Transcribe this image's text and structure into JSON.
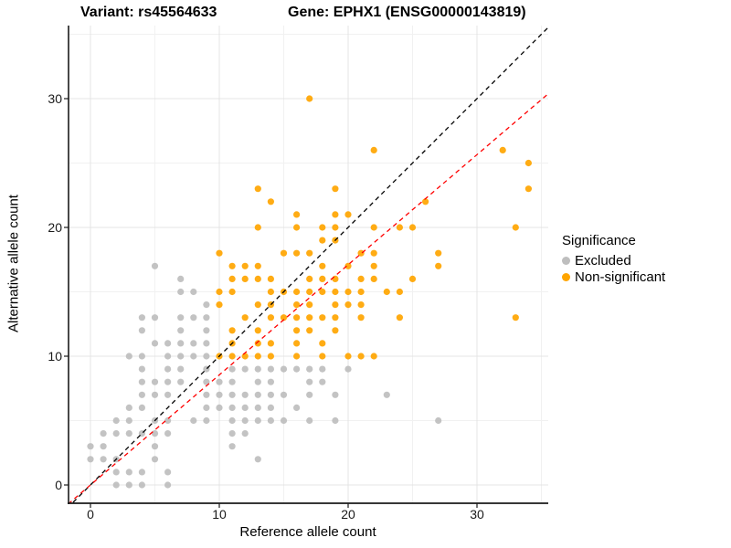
{
  "chart_data": {
    "type": "scatter",
    "titles": {
      "left": "Variant: rs45564633",
      "right": "Gene: EPHX1 (ENSG00000143819)"
    },
    "xlabel": "Reference allele count",
    "ylabel": "Alternative allele count",
    "x_ticks": [
      "0",
      "10",
      "20",
      "30"
    ],
    "y_ticks": [
      "0",
      "10",
      "20",
      "30"
    ],
    "x_tick_values": [
      0,
      10,
      20,
      30
    ],
    "y_tick_values": [
      0,
      10,
      20,
      30
    ],
    "x_minor_values": [
      5,
      15,
      25,
      35
    ],
    "y_minor_values": [
      5,
      15,
      25,
      35
    ],
    "xlim": [
      -1.7,
      35.5
    ],
    "ylim": [
      -1.42,
      35.67
    ],
    "grid": true,
    "colors": {
      "excluded": "#BEBEBE",
      "non_significant": "#FFA500",
      "identity_line": "#000000",
      "fit_line": "#FF0000",
      "grid_major": "#e4e4e4",
      "grid_minor": "#f1f1f1",
      "axis": "#1a1a1a"
    },
    "legend": {
      "title": "Significance",
      "position": "right",
      "items": [
        {
          "label": "Excluded",
          "color": "#BEBEBE"
        },
        {
          "label": "Non-significant",
          "color": "#FFA500"
        }
      ]
    },
    "lines": [
      {
        "name": "identity-line",
        "slope": 1,
        "intercept": 0,
        "color": "#000000",
        "style": "dashed"
      },
      {
        "name": "fit-line",
        "slope": 0.855,
        "intercept": 0,
        "color": "#FF0000",
        "style": "dashed"
      }
    ],
    "series": [
      {
        "name": "Excluded",
        "color": "#BEBEBE",
        "points": [
          [
            2,
            0
          ],
          [
            3,
            0
          ],
          [
            4,
            0
          ],
          [
            6,
            0
          ],
          [
            2,
            1
          ],
          [
            3,
            1
          ],
          [
            4,
            1
          ],
          [
            6,
            1
          ],
          [
            0,
            2
          ],
          [
            1,
            2
          ],
          [
            2,
            2
          ],
          [
            5,
            2
          ],
          [
            13,
            2
          ],
          [
            0,
            3
          ],
          [
            1,
            3
          ],
          [
            5,
            3
          ],
          [
            11,
            3
          ],
          [
            1,
            4
          ],
          [
            2,
            4
          ],
          [
            3,
            4
          ],
          [
            4,
            4
          ],
          [
            5,
            4
          ],
          [
            6,
            4
          ],
          [
            11,
            4
          ],
          [
            12,
            4
          ],
          [
            2,
            5
          ],
          [
            3,
            5
          ],
          [
            5,
            5
          ],
          [
            6,
            5
          ],
          [
            8,
            5
          ],
          [
            9,
            5
          ],
          [
            11,
            5
          ],
          [
            12,
            5
          ],
          [
            13,
            5
          ],
          [
            14,
            5
          ],
          [
            15,
            5
          ],
          [
            17,
            5
          ],
          [
            19,
            5
          ],
          [
            27,
            5
          ],
          [
            3,
            6
          ],
          [
            4,
            6
          ],
          [
            9,
            6
          ],
          [
            10,
            6
          ],
          [
            11,
            6
          ],
          [
            12,
            6
          ],
          [
            13,
            6
          ],
          [
            14,
            6
          ],
          [
            16,
            6
          ],
          [
            4,
            7
          ],
          [
            5,
            7
          ],
          [
            6,
            7
          ],
          [
            9,
            7
          ],
          [
            10,
            7
          ],
          [
            11,
            7
          ],
          [
            12,
            7
          ],
          [
            13,
            7
          ],
          [
            14,
            7
          ],
          [
            15,
            7
          ],
          [
            17,
            7
          ],
          [
            19,
            7
          ],
          [
            23,
            7
          ],
          [
            4,
            8
          ],
          [
            5,
            8
          ],
          [
            6,
            8
          ],
          [
            7,
            8
          ],
          [
            9,
            8
          ],
          [
            10,
            8
          ],
          [
            11,
            8
          ],
          [
            13,
            8
          ],
          [
            14,
            8
          ],
          [
            17,
            8
          ],
          [
            18,
            8
          ],
          [
            4,
            9
          ],
          [
            6,
            9
          ],
          [
            7,
            9
          ],
          [
            9,
            9
          ],
          [
            11,
            9
          ],
          [
            12,
            9
          ],
          [
            13,
            9
          ],
          [
            14,
            9
          ],
          [
            15,
            9
          ],
          [
            16,
            9
          ],
          [
            17,
            9
          ],
          [
            18,
            9
          ],
          [
            20,
            9
          ],
          [
            3,
            10
          ],
          [
            4,
            10
          ],
          [
            6,
            10
          ],
          [
            7,
            10
          ],
          [
            8,
            10
          ],
          [
            9,
            10
          ],
          [
            5,
            11
          ],
          [
            6,
            11
          ],
          [
            7,
            11
          ],
          [
            8,
            11
          ],
          [
            9,
            11
          ],
          [
            4,
            12
          ],
          [
            7,
            12
          ],
          [
            9,
            12
          ],
          [
            4,
            13
          ],
          [
            5,
            13
          ],
          [
            7,
            13
          ],
          [
            8,
            13
          ],
          [
            9,
            13
          ],
          [
            9,
            14
          ],
          [
            7,
            15
          ],
          [
            8,
            15
          ],
          [
            7,
            16
          ],
          [
            5,
            17
          ]
        ]
      },
      {
        "name": "Non-significant",
        "color": "#FFA500",
        "points": [
          [
            10,
            10
          ],
          [
            11,
            10
          ],
          [
            12,
            10
          ],
          [
            13,
            10
          ],
          [
            14,
            10
          ],
          [
            16,
            10
          ],
          [
            18,
            10
          ],
          [
            20,
            10
          ],
          [
            21,
            10
          ],
          [
            22,
            10
          ],
          [
            11,
            11
          ],
          [
            13,
            11
          ],
          [
            14,
            11
          ],
          [
            16,
            11
          ],
          [
            18,
            11
          ],
          [
            11,
            12
          ],
          [
            13,
            12
          ],
          [
            16,
            12
          ],
          [
            17,
            12
          ],
          [
            19,
            12
          ],
          [
            12,
            13
          ],
          [
            14,
            13
          ],
          [
            15,
            13
          ],
          [
            16,
            13
          ],
          [
            17,
            13
          ],
          [
            18,
            13
          ],
          [
            19,
            13
          ],
          [
            21,
            13
          ],
          [
            24,
            13
          ],
          [
            33,
            13
          ],
          [
            10,
            14
          ],
          [
            13,
            14
          ],
          [
            14,
            14
          ],
          [
            16,
            14
          ],
          [
            17,
            14
          ],
          [
            19,
            14
          ],
          [
            20,
            14
          ],
          [
            21,
            14
          ],
          [
            10,
            15
          ],
          [
            11,
            15
          ],
          [
            14,
            15
          ],
          [
            15,
            15
          ],
          [
            16,
            15
          ],
          [
            17,
            15
          ],
          [
            18,
            15
          ],
          [
            19,
            15
          ],
          [
            20,
            15
          ],
          [
            21,
            15
          ],
          [
            23,
            15
          ],
          [
            24,
            15
          ],
          [
            11,
            16
          ],
          [
            12,
            16
          ],
          [
            13,
            16
          ],
          [
            14,
            16
          ],
          [
            17,
            16
          ],
          [
            18,
            16
          ],
          [
            19,
            16
          ],
          [
            21,
            16
          ],
          [
            22,
            16
          ],
          [
            25,
            16
          ],
          [
            11,
            17
          ],
          [
            12,
            17
          ],
          [
            13,
            17
          ],
          [
            18,
            17
          ],
          [
            20,
            17
          ],
          [
            22,
            17
          ],
          [
            27,
            17
          ],
          [
            10,
            18
          ],
          [
            15,
            18
          ],
          [
            16,
            18
          ],
          [
            17,
            18
          ],
          [
            21,
            18
          ],
          [
            22,
            18
          ],
          [
            27,
            18
          ],
          [
            18,
            19
          ],
          [
            19,
            19
          ],
          [
            13,
            20
          ],
          [
            16,
            20
          ],
          [
            18,
            20
          ],
          [
            19,
            20
          ],
          [
            22,
            20
          ],
          [
            24,
            20
          ],
          [
            25,
            20
          ],
          [
            33,
            20
          ],
          [
            16,
            21
          ],
          [
            19,
            21
          ],
          [
            20,
            21
          ],
          [
            14,
            22
          ],
          [
            26,
            22
          ],
          [
            13,
            23
          ],
          [
            19,
            23
          ],
          [
            34,
            23
          ],
          [
            34,
            25
          ],
          [
            22,
            26
          ],
          [
            32,
            26
          ],
          [
            17,
            30
          ]
        ]
      }
    ]
  }
}
